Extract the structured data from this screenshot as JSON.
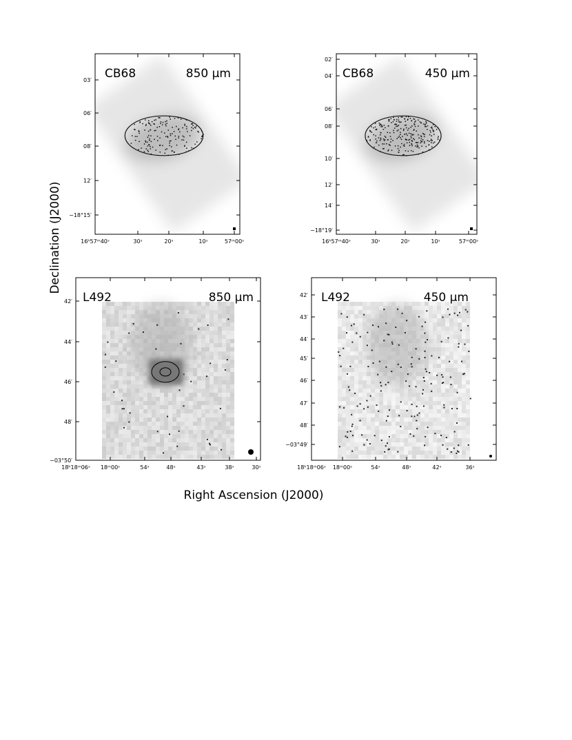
{
  "figure": {
    "y_axis_label": "Declination (J2000)",
    "x_axis_label": "Right Ascension (J2000)",
    "panels": [
      {
        "source": "CB68",
        "band": "850 µm",
        "yticks": [
          "03′",
          "06′",
          "08′",
          "12′",
          "−18°15′"
        ],
        "xticks": [
          "16ʰ57ᵐ40ˢ",
          "30ˢ",
          "20ˢ",
          "10ˢ",
          "57ᵐ00ˢ"
        ]
      },
      {
        "source": "CB68",
        "band": "450 µm",
        "yticks": [
          "02′",
          "04′",
          "06′",
          "08′",
          "10′",
          "12′",
          "14′",
          "−18°19′"
        ],
        "xticks": [
          "16ʰ57ᵐ40ˢ",
          "30ˢ",
          "20ˢ",
          "10ˢ",
          "57ᵐ00ˢ"
        ]
      },
      {
        "source": "L492",
        "band": "850 µm",
        "yticks": [
          "42′",
          "44′",
          "46′",
          "48′",
          "−03°50′"
        ],
        "xticks": [
          "18ʰ18ᵐ06ˢ",
          "18ᵐ00ˢ",
          "54ˢ",
          "48ˢ",
          "43ˢ",
          "38ˢ",
          "30ˢ"
        ]
      },
      {
        "source": "L492",
        "band": "450 µm",
        "yticks": [
          "42′",
          "43′",
          "44′",
          "45′",
          "46′",
          "47′",
          "48′",
          "−03°49′"
        ],
        "xticks": [
          "18ʰ18ᵐ06ˢ",
          "18ᵐ00ˢ",
          "54ˢ",
          "48ˢ",
          "42ˢ",
          "36ˢ"
        ]
      }
    ]
  }
}
